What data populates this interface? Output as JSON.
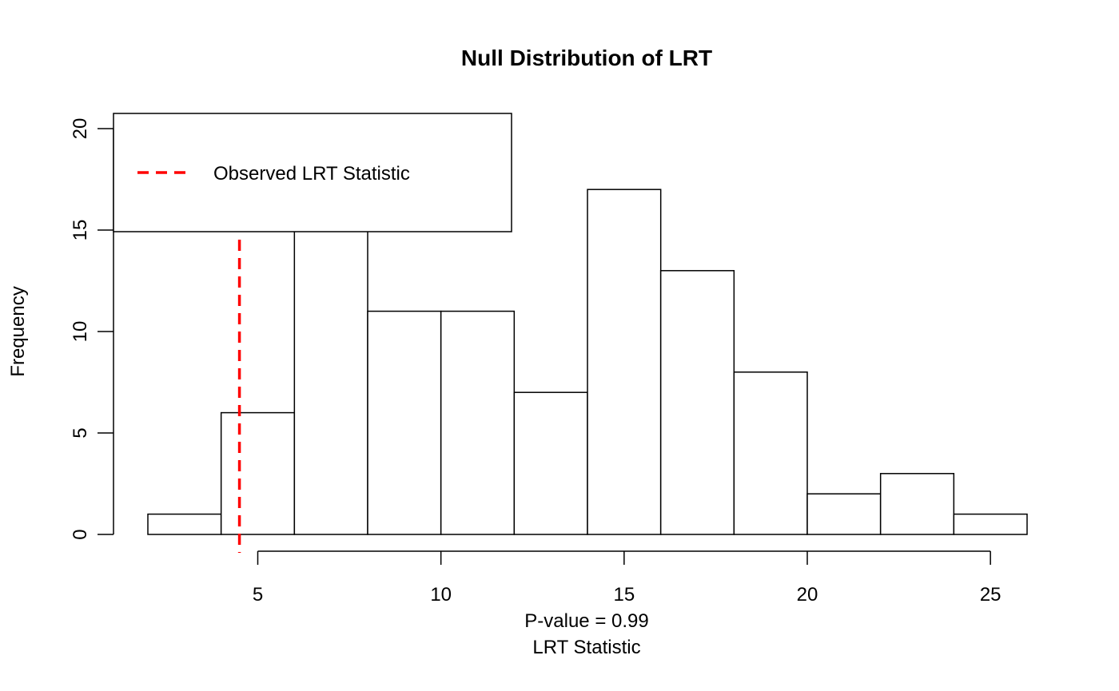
{
  "chart_data": {
    "type": "bar",
    "title": "Null Distribution of LRT",
    "xlabel": "LRT Statistic",
    "ylabel": "Frequency",
    "subtitle": "P-value = 0.99",
    "bins": [
      {
        "start": 2,
        "end": 4,
        "count": 1
      },
      {
        "start": 4,
        "end": 6,
        "count": 6
      },
      {
        "start": 6,
        "end": 8,
        "count": 15
      },
      {
        "start": 8,
        "end": 10,
        "count": 11
      },
      {
        "start": 10,
        "end": 12,
        "count": 11
      },
      {
        "start": 12,
        "end": 14,
        "count": 7
      },
      {
        "start": 14,
        "end": 16,
        "count": 17
      },
      {
        "start": 16,
        "end": 18,
        "count": 13
      },
      {
        "start": 18,
        "end": 20,
        "count": 8
      },
      {
        "start": 20,
        "end": 22,
        "count": 2
      },
      {
        "start": 22,
        "end": 24,
        "count": 3
      },
      {
        "start": 24,
        "end": 26,
        "count": 1
      }
    ],
    "xlim": [
      2,
      26
    ],
    "ylim": [
      0,
      20
    ],
    "xticks": [
      5,
      10,
      15,
      20,
      25
    ],
    "yticks": [
      0,
      5,
      10,
      15,
      20
    ],
    "observed_statistic": 4.5,
    "observed_line_color": "#ff0000",
    "observed_line_style": "dashed",
    "legend": {
      "placement": "top-left",
      "entries": [
        {
          "label": "Observed LRT Statistic",
          "color": "#ff0000",
          "style": "dashed"
        }
      ]
    },
    "grid": false
  }
}
